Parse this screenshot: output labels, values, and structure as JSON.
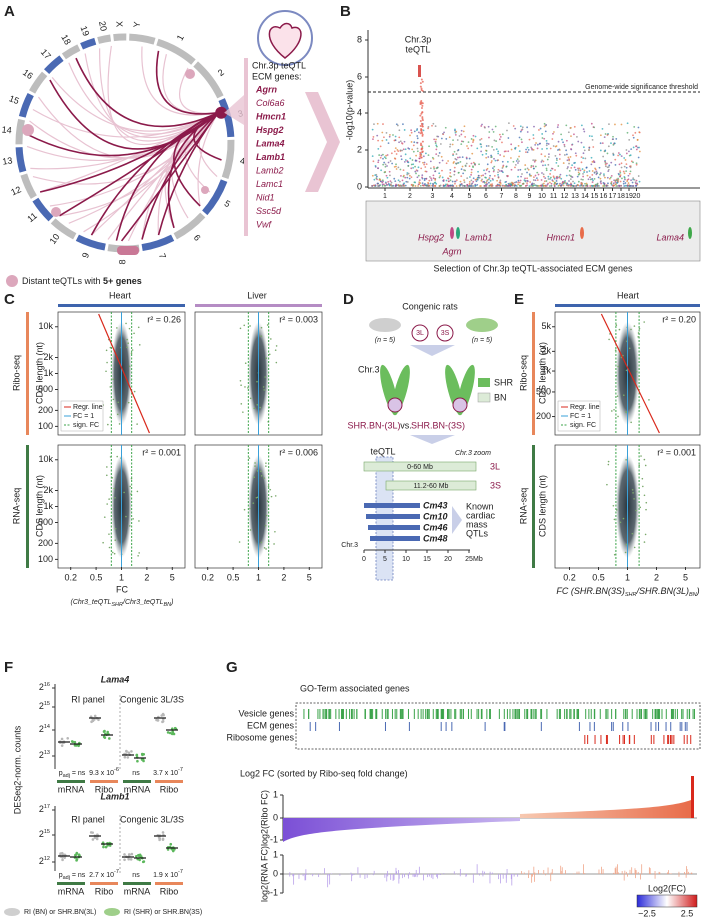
{
  "panel_labels": [
    "A",
    "B",
    "C",
    "D",
    "E",
    "F",
    "G"
  ],
  "A": {
    "chromosomes": [
      "1",
      "2",
      "3",
      "4",
      "5",
      "6",
      "7",
      "8",
      "9",
      "10",
      "11",
      "12",
      "13",
      "14",
      "15",
      "16",
      "17",
      "18",
      "19",
      "20",
      "X",
      "Y"
    ],
    "box_title": [
      "Chr.3p teQTL",
      "ECM genes:"
    ],
    "genes": [
      {
        "name": "Agrn",
        "bold": true
      },
      {
        "name": "Col6a6",
        "bold": false
      },
      {
        "name": "Hmcn1",
        "bold": true
      },
      {
        "name": "Hspg2",
        "bold": true
      },
      {
        "name": "Lama4",
        "bold": true
      },
      {
        "name": "Lamb1",
        "bold": true
      },
      {
        "name": "Lamb2",
        "bold": false
      },
      {
        "name": "Lamc1",
        "bold": false
      },
      {
        "name": "Nid1",
        "bold": false
      },
      {
        "name": "Ssc5d",
        "bold": false
      },
      {
        "name": "Vwf",
        "bold": false
      }
    ],
    "legend": [
      "Distant teQTLs with ",
      "5+ genes"
    ]
  },
  "B": {
    "y_label": "-log10(p-value)",
    "yticks": [
      "0",
      "2",
      "4",
      "6",
      "8"
    ],
    "peak_label": [
      "Chr.3p",
      "teQTL"
    ],
    "threshold_label": "Genome-wide significance threshold",
    "chromosomes": [
      "1",
      "2",
      "3",
      "4",
      "5",
      "6",
      "7",
      "8",
      "9",
      "10",
      "11",
      "12",
      "13",
      "14",
      "15",
      "16",
      "17",
      "18",
      "19",
      "20"
    ],
    "genes": [
      "Hspg2",
      "Agrn",
      "Lamb1",
      "Hmcn1",
      "Lama4"
    ],
    "caption": "Selection of Chr.3p teQTL-associated ECM genes"
  },
  "C": {
    "columns": [
      "Heart",
      "Liver"
    ],
    "rows": [
      "Ribo-seq",
      "RNA-seq"
    ],
    "y_label": "CDS length (nt)",
    "yticks": [
      "100",
      "200",
      "500",
      "1k",
      "2k",
      "10k"
    ],
    "r2": [
      [
        "r² = 0.26",
        "r² = 0.003"
      ],
      [
        "r² = 0.001",
        "r² = 0.006"
      ]
    ],
    "legend": [
      "Regr. line",
      "FC = 1",
      "sign. FC"
    ],
    "xticks": [
      "0.2",
      "0.5",
      "1",
      "2",
      "5"
    ],
    "x_label": "FC",
    "x_label_parts": [
      "(Chr3_teQTL",
      "SHR",
      "/Chr3_teQTL",
      "BN",
      ")"
    ]
  },
  "D": {
    "title": "Congenic rats",
    "n": [
      "(n = 5)",
      "(n = 5)"
    ],
    "strains": [
      "3L",
      "3S"
    ],
    "chr": "Chr.3",
    "key": [
      "SHR",
      "BN"
    ],
    "comparison": [
      "SHR.BN-(3L)",
      "vs.",
      "SHR.BN-(3S)"
    ],
    "teqtl": "teQTL",
    "zoom": "Chr.3 zoom",
    "segments": [
      {
        "range": "0-60 Mb",
        "name": "3L"
      },
      {
        "range": "11.2-60 Mb",
        "name": "3S"
      }
    ],
    "qtls": [
      "Cm43",
      "Cm10",
      "Cm46",
      "Cm48"
    ],
    "qtl_label": [
      "Known",
      "cardiac",
      "mass",
      "QTLs"
    ],
    "axis_chr": "Chr.3",
    "xticks": [
      "0",
      "5",
      "10",
      "15",
      "20",
      "25"
    ],
    "x_unit": "Mb"
  },
  "E": {
    "column": "Heart",
    "rows": [
      "Ribo-seq",
      "RNA-seq"
    ],
    "y_label": "CDS length (nt)",
    "yticks": [
      "200",
      "500",
      "1k",
      "2k",
      "5k"
    ],
    "r2": [
      "r² = 0.20",
      "r² = 0.001"
    ],
    "legend": [
      "Regr. line",
      "FC = 1",
      "sign. FC"
    ],
    "xticks": [
      "0.2",
      "0.5",
      "1",
      "2",
      "5"
    ],
    "x_label_parts": [
      "FC ",
      "(SHR.BN(3S)",
      "SHR",
      "/SHR.BN(3L)",
      "BN",
      ")"
    ]
  },
  "F": {
    "y_label": "DESeq2-norm. counts",
    "groups": [
      "RI panel",
      "Congenic 3L/3S"
    ],
    "xcats": [
      "mRNA",
      "Ribo",
      "mRNA",
      "Ribo"
    ],
    "genes": [
      {
        "title": "Lama4",
        "yticks": [
          {
            "base": "2",
            "exp": "16"
          },
          {
            "base": "2",
            "exp": "15"
          },
          {
            "base": "2",
            "exp": "14"
          },
          {
            "base": "2",
            "exp": "13"
          }
        ],
        "pvals": [
          [
            "p",
            "adj",
            " = ns"
          ],
          [
            "9.3 x 10",
            "-6"
          ],
          [
            "ns"
          ],
          [
            "3.7 x 10",
            "-7"
          ]
        ]
      },
      {
        "title": "Lamb1",
        "yticks": [
          {
            "base": "2",
            "exp": "17"
          },
          {
            "base": "2",
            "exp": "15"
          },
          {
            "base": "2",
            "exp": "12"
          }
        ],
        "pvals": [
          [
            "p",
            "adj",
            " = ns"
          ],
          [
            "2.7 x 10",
            "-7"
          ],
          [
            "ns"
          ],
          [
            "1.9 x 10",
            "-7"
          ]
        ]
      }
    ],
    "legend": [
      "RI (BN) or SHR.BN(3L)",
      "RI (SHR) or SHR.BN(3S)"
    ]
  },
  "G": {
    "go_title": "GO-Term associated genes",
    "go_rows": [
      "Vesicle genes",
      "ECM genes",
      "Ribosome genes"
    ],
    "fc_title": "Log2 FC (sorted by Ribo-seq fold change)",
    "ribo_label": "log2(Ribo FC)",
    "rna_label": "log2(RNA FC)",
    "yticks": [
      "1",
      "0",
      "-1"
    ],
    "colorbar_title": "Log2(FC)",
    "colorbar_ticks": [
      "−2.5",
      "2.5"
    ]
  }
}
